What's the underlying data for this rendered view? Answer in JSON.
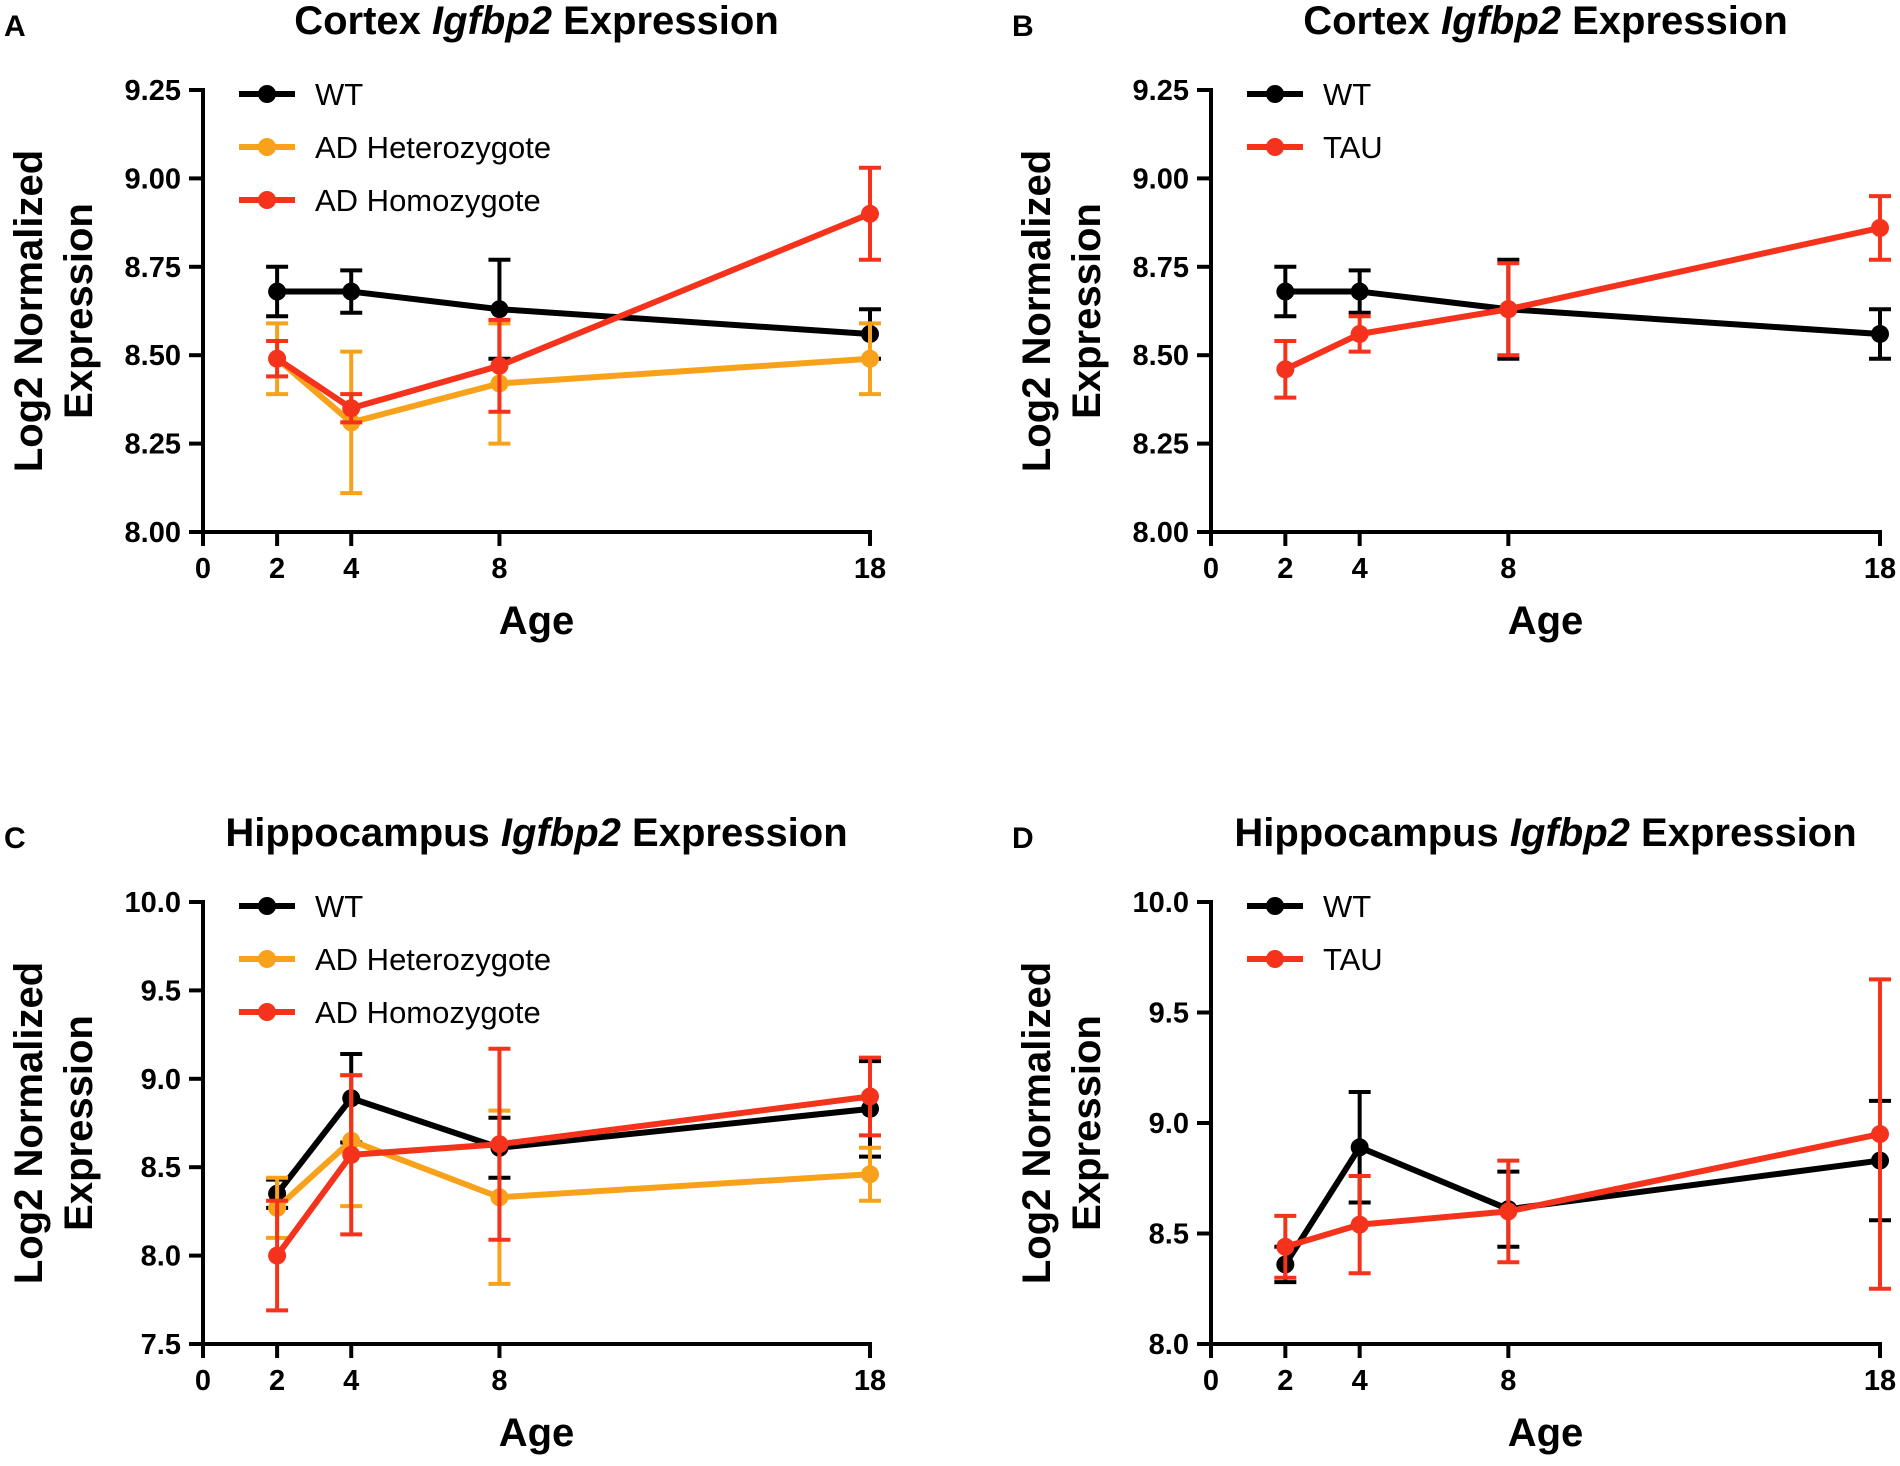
{
  "figure": {
    "panel_count": 4
  },
  "chart_data": [
    {
      "panel": "A",
      "type": "line",
      "title_regular": "Cortex ",
      "title_italic": "Igfbp2",
      "title_suffix": " Expression",
      "xlabel": "Age",
      "ylabel_line1": "Log2 Normalized",
      "ylabel_line2": "Expression",
      "xlim": [
        0,
        18
      ],
      "ylim": [
        8.0,
        9.25
      ],
      "xticks": [
        0,
        2,
        4,
        8,
        18
      ],
      "yticks": [
        8.0,
        8.25,
        8.5,
        8.75,
        9.0,
        9.25
      ],
      "ytick_decimals": 2,
      "x": [
        2,
        4,
        8,
        18
      ],
      "series": [
        {
          "name": "WT",
          "color": "#000000",
          "values": [
            8.68,
            8.68,
            8.63,
            8.56
          ],
          "errors": [
            0.07,
            0.06,
            0.14,
            0.07
          ]
        },
        {
          "name": "AD Heterozygote",
          "color": "#f7a21a",
          "values": [
            8.49,
            8.31,
            8.42,
            8.49
          ],
          "errors": [
            0.1,
            0.2,
            0.17,
            0.1
          ]
        },
        {
          "name": "AD Homozygote",
          "color": "#f5321c",
          "values": [
            8.49,
            8.35,
            8.47,
            8.9
          ],
          "errors": [
            0.05,
            0.04,
            0.13,
            0.13
          ]
        }
      ]
    },
    {
      "panel": "B",
      "type": "line",
      "title_regular": "Cortex ",
      "title_italic": "Igfbp2",
      "title_suffix": " Expression",
      "xlabel": "Age",
      "ylabel_line1": "Log2 Normalized",
      "ylabel_line2": "Expression",
      "xlim": [
        0,
        18
      ],
      "ylim": [
        8.0,
        9.25
      ],
      "xticks": [
        0,
        2,
        4,
        8,
        18
      ],
      "yticks": [
        8.0,
        8.25,
        8.5,
        8.75,
        9.0,
        9.25
      ],
      "ytick_decimals": 2,
      "x": [
        2,
        4,
        8,
        18
      ],
      "series": [
        {
          "name": "WT",
          "color": "#000000",
          "values": [
            8.68,
            8.68,
            8.63,
            8.56
          ],
          "errors": [
            0.07,
            0.06,
            0.14,
            0.07
          ]
        },
        {
          "name": "TAU",
          "color": "#f5321c",
          "values": [
            8.46,
            8.56,
            8.63,
            8.86
          ],
          "errors": [
            0.08,
            0.05,
            0.13,
            0.09
          ]
        }
      ]
    },
    {
      "panel": "C",
      "type": "line",
      "title_regular": "Hippocampus ",
      "title_italic": "Igfbp2",
      "title_suffix": " Expression",
      "xlabel": "Age",
      "ylabel_line1": "Log2 Normalized",
      "ylabel_line2": "Expression",
      "xlim": [
        0,
        18
      ],
      "ylim": [
        7.5,
        10.0
      ],
      "xticks": [
        0,
        2,
        4,
        8,
        18
      ],
      "yticks": [
        7.5,
        8.0,
        8.5,
        9.0,
        9.5,
        10.0
      ],
      "ytick_decimals": 1,
      "x": [
        2,
        4,
        8,
        18
      ],
      "series": [
        {
          "name": "WT",
          "color": "#000000",
          "values": [
            8.35,
            8.89,
            8.61,
            8.83
          ],
          "errors": [
            0.08,
            0.25,
            0.17,
            0.27
          ]
        },
        {
          "name": "AD Heterozygote",
          "color": "#f7a21a",
          "values": [
            8.27,
            8.65,
            8.33,
            8.46
          ],
          "errors": [
            0.17,
            0.37,
            0.49,
            0.15
          ]
        },
        {
          "name": "AD Homozygote",
          "color": "#f5321c",
          "values": [
            8.0,
            8.57,
            8.63,
            8.9
          ],
          "errors": [
            0.31,
            0.45,
            0.54,
            0.22
          ]
        }
      ]
    },
    {
      "panel": "D",
      "type": "line",
      "title_regular": "Hippocampus ",
      "title_italic": "Igfbp2",
      "title_suffix": " Expression",
      "xlabel": "Age",
      "ylabel_line1": "Log2 Normalized",
      "ylabel_line2": "Expression",
      "xlim": [
        0,
        18
      ],
      "ylim": [
        8.0,
        10.0
      ],
      "xticks": [
        0,
        2,
        4,
        8,
        18
      ],
      "yticks": [
        8.0,
        8.5,
        9.0,
        9.5,
        10.0
      ],
      "ytick_decimals": 1,
      "x": [
        2,
        4,
        8,
        18
      ],
      "series": [
        {
          "name": "WT",
          "color": "#000000",
          "values": [
            8.36,
            8.89,
            8.61,
            8.83
          ],
          "errors": [
            0.08,
            0.25,
            0.17,
            0.27
          ]
        },
        {
          "name": "TAU",
          "color": "#f5321c",
          "values": [
            8.44,
            8.54,
            8.6,
            8.95
          ],
          "errors": [
            0.14,
            0.22,
            0.23,
            0.7
          ]
        }
      ]
    }
  ]
}
